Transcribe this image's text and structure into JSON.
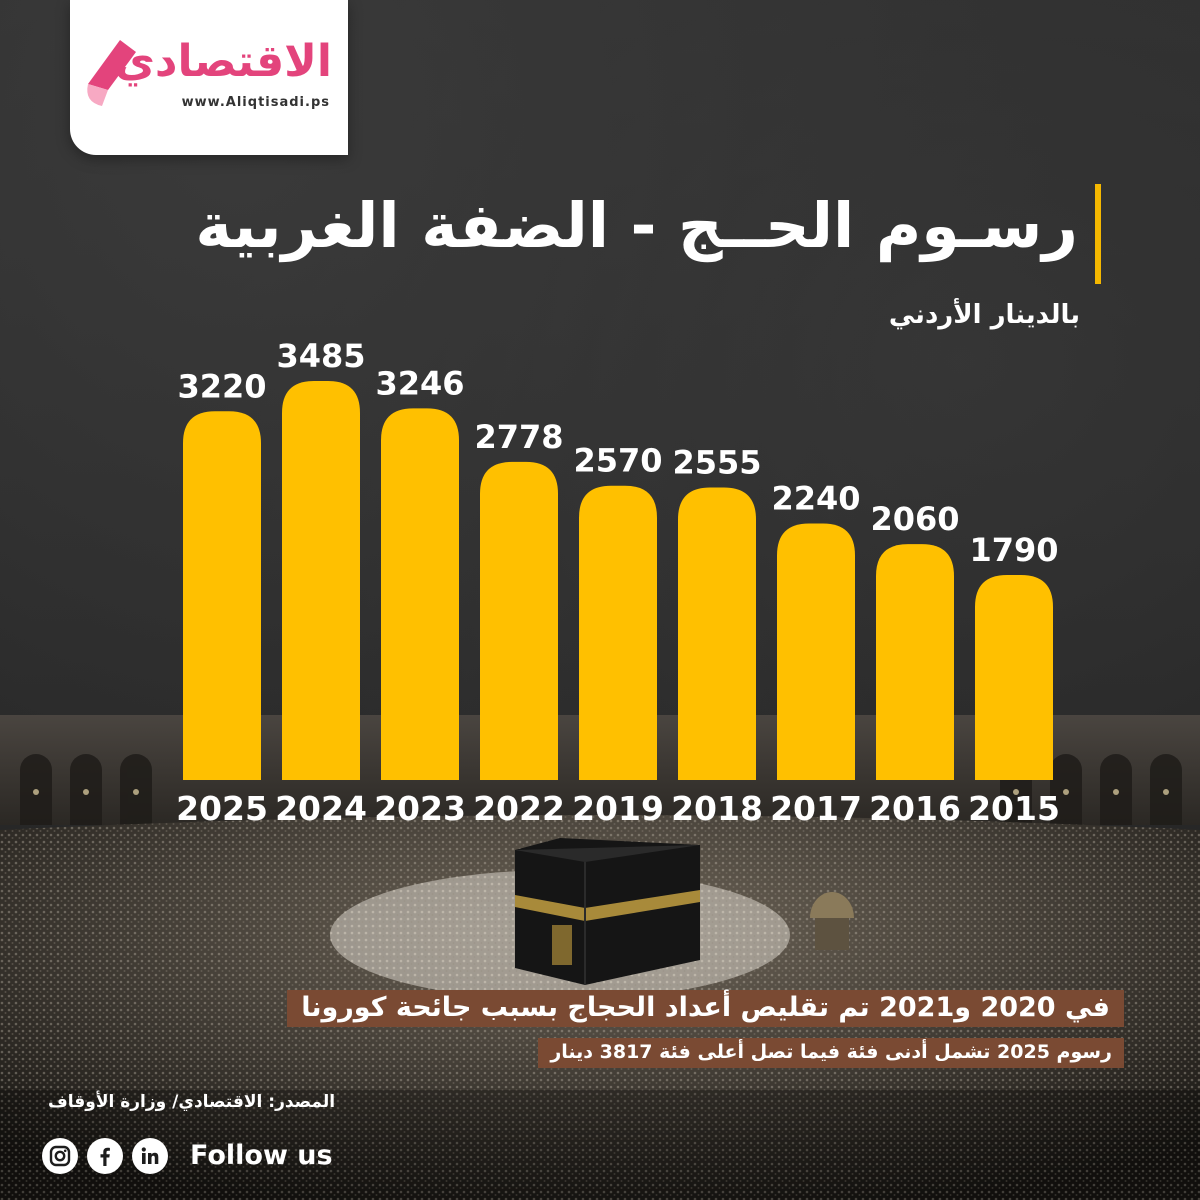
{
  "logo": {
    "name": "الاقتصادي",
    "url": "www.Aliqtisadi.ps"
  },
  "title": "رسـوم الحــج - الضفة الغربية",
  "subtitle": "بالدينار الأردني",
  "chart_data": {
    "type": "bar",
    "title": "رسـوم الحــج - الضفة الغربية",
    "ylabel": "بالدينار الأردني",
    "xlabel": "",
    "categories": [
      "2025",
      "2024",
      "2023",
      "2022",
      "2019",
      "2018",
      "2017",
      "2016",
      "2015"
    ],
    "values": [
      3220,
      3485,
      3246,
      2778,
      2570,
      2555,
      2240,
      2060,
      1790
    ],
    "bar_color": "#ffc000",
    "grid": false,
    "legend": "none"
  },
  "notes": {
    "line1": "في 2020 و2021 تم تقليص أعداد الحجاج بسبب جائحة كورونا",
    "line2": "رسوم 2025 تشمل أدنى فئة فيما تصل أعلى فئة 3817 دينار"
  },
  "source": "المصدر: الاقتصادي/ وزارة الأوقاف",
  "social": {
    "follow_label": "Follow us",
    "icons": [
      "instagram-icon",
      "facebook-icon",
      "linkedin-icon"
    ]
  },
  "colors": {
    "accent": "#f5b800",
    "brand": "#e3447c",
    "note_background": "#7a4a33"
  }
}
